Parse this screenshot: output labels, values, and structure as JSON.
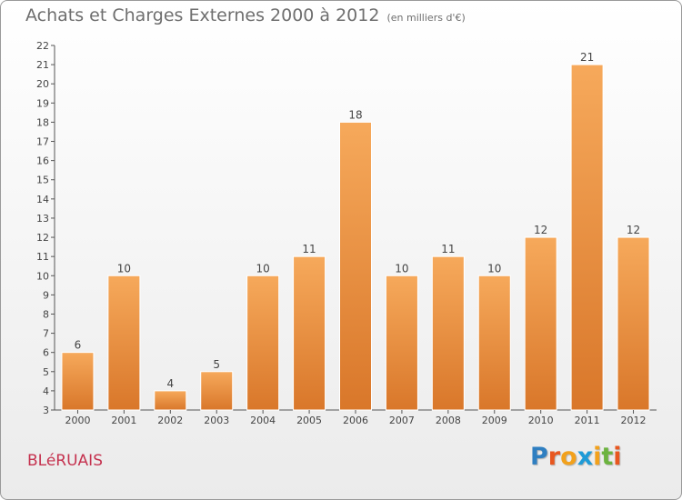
{
  "title": "Achats et Charges Externes 2000 à 2012",
  "subtitle": "(en milliers d'€)",
  "commune": "BLéRUAIS",
  "logo": {
    "letters": [
      "P",
      "r",
      "o",
      "x",
      "i",
      "t",
      "i"
    ],
    "colors": [
      "#2f7fc1",
      "#e8571f",
      "#f2a11c",
      "#1e9bd7",
      "#f2a11c",
      "#6cb33f",
      "#e8571f"
    ]
  },
  "colors": {
    "bar_top": "#f6a95b",
    "bar_bottom": "#d9772a",
    "bar_stroke": "#ffffff",
    "grid": "#dddddd"
  },
  "chart_data": {
    "type": "bar",
    "categories": [
      "2000",
      "2001",
      "2002",
      "2003",
      "2004",
      "2005",
      "2006",
      "2007",
      "2008",
      "2009",
      "2010",
      "2011",
      "2012"
    ],
    "values": [
      6,
      10,
      4,
      5,
      10,
      11,
      18,
      10,
      11,
      10,
      12,
      21,
      12
    ],
    "xlabel": "",
    "ylabel": "",
    "ylim": [
      3,
      22
    ],
    "yticks": [
      3,
      4,
      5,
      6,
      7,
      8,
      9,
      10,
      11,
      12,
      13,
      14,
      15,
      16,
      17,
      18,
      19,
      20,
      21,
      22
    ],
    "grid": false,
    "data_labels": true
  }
}
